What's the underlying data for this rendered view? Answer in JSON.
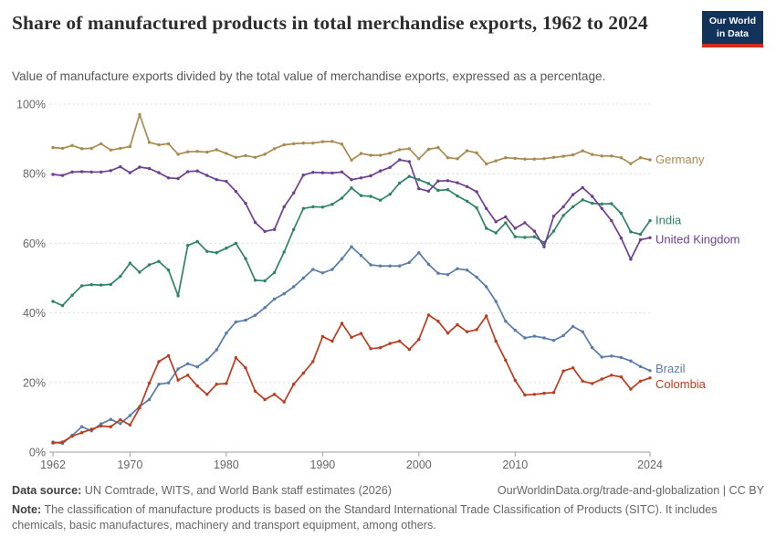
{
  "header": {
    "title": "Share of manufactured products in total merchandise exports, 1962 to 2024",
    "subtitle": "Value of manufacture exports divided by the total value of merchandise exports, expressed as a percentage."
  },
  "logo": {
    "line1": "Our World",
    "line2": "in Data",
    "bg": "#12335c",
    "accent": "#cf2e1f"
  },
  "footer": {
    "source_label": "Data source:",
    "source_text": " UN Comtrade, WITS, and World Bank staff estimates (2026)",
    "link": "OurWorldinData.org/trade-and-globalization | CC BY",
    "note_label": "Note:",
    "note_text": " The classification of manufacture products is based on the Standard International Trade Classification of Products (SITC). It includes chemicals, basic manufactures, machinery and transport equipment, among others."
  },
  "chart_data": {
    "type": "line",
    "title": "Share of manufactured products in total merchandise exports, 1962 to 2024",
    "xlabel": "",
    "ylabel": "",
    "ylim": [
      0,
      100
    ],
    "y_ticks": [
      0,
      20,
      40,
      60,
      80,
      100
    ],
    "x_ticks": [
      1962,
      1970,
      1980,
      1990,
      2000,
      2010,
      2024
    ],
    "x_range": [
      1962,
      2024
    ],
    "grid": "dashed-horizontal",
    "legend_position": "line-end-labels",
    "years": [
      1962,
      1963,
      1964,
      1965,
      1966,
      1967,
      1968,
      1969,
      1970,
      1971,
      1972,
      1973,
      1974,
      1975,
      1976,
      1977,
      1978,
      1979,
      1980,
      1981,
      1982,
      1983,
      1984,
      1985,
      1986,
      1987,
      1988,
      1989,
      1990,
      1991,
      1992,
      1993,
      1994,
      1995,
      1996,
      1997,
      1998,
      1999,
      2000,
      2001,
      2002,
      2003,
      2004,
      2005,
      2006,
      2007,
      2008,
      2009,
      2010,
      2011,
      2012,
      2013,
      2014,
      2015,
      2016,
      2017,
      2018,
      2019,
      2020,
      2021,
      2022,
      2023,
      2024
    ],
    "series": [
      {
        "name": "Germany",
        "color": "#A88A50",
        "label_dy": 0,
        "values": [
          87.5,
          87.3,
          88.1,
          87.2,
          87.3,
          88.6,
          86.8,
          87.3,
          87.8,
          97.0,
          89.0,
          88.3,
          88.6,
          85.6,
          86.3,
          86.4,
          86.2,
          86.9,
          85.8,
          84.7,
          85.2,
          84.7,
          85.6,
          87.2,
          88.3,
          88.6,
          88.8,
          88.8,
          89.2,
          89.3,
          88.5,
          83.9,
          85.8,
          85.3,
          85.3,
          85.9,
          86.9,
          87.2,
          84.3,
          87.0,
          87.5,
          84.6,
          84.3,
          86.6,
          86.0,
          82.8,
          83.7,
          84.6,
          84.4,
          84.2,
          84.2,
          84.3,
          84.7,
          85.0,
          85.4,
          86.6,
          85.5,
          85.1,
          85.1,
          84.6,
          82.9,
          84.6,
          84.0
        ]
      },
      {
        "name": "India",
        "color": "#2C8465",
        "label_dy": 0,
        "values": [
          43.3,
          42.1,
          45.1,
          47.8,
          48.1,
          48.0,
          48.2,
          50.5,
          54.3,
          51.7,
          53.8,
          54.8,
          52.3,
          44.9,
          59.4,
          60.5,
          57.7,
          57.3,
          58.6,
          60.0,
          55.6,
          49.4,
          49.2,
          51.6,
          57.5,
          64.0,
          70.0,
          70.5,
          70.4,
          71.2,
          73.0,
          75.9,
          73.7,
          73.5,
          72.4,
          74.1,
          77.3,
          79.2,
          78.3,
          77.2,
          75.2,
          75.4,
          73.6,
          72.1,
          70.2,
          64.3,
          63.0,
          65.9,
          61.9,
          61.7,
          61.9,
          60.2,
          63.5,
          68.0,
          70.5,
          72.5,
          71.5,
          71.3,
          71.4,
          68.6,
          63.3,
          62.6,
          66.5
        ]
      },
      {
        "name": "United Kingdom",
        "color": "#6D3E91",
        "label_dy": 2,
        "values": [
          79.8,
          79.5,
          80.5,
          80.6,
          80.5,
          80.5,
          80.9,
          82.0,
          80.3,
          81.9,
          81.5,
          80.3,
          78.8,
          78.6,
          80.6,
          80.8,
          79.5,
          78.3,
          77.8,
          74.9,
          71.5,
          66.0,
          63.4,
          64.0,
          70.5,
          74.5,
          79.6,
          80.4,
          80.3,
          80.2,
          80.5,
          78.3,
          78.8,
          79.4,
          80.8,
          81.8,
          84.0,
          83.5,
          75.7,
          75.0,
          77.9,
          78.0,
          77.4,
          76.3,
          74.8,
          70.0,
          66.2,
          67.6,
          64.3,
          65.9,
          63.5,
          59.0,
          67.8,
          70.5,
          74.0,
          76.0,
          73.5,
          70.0,
          66.5,
          61.5,
          55.4,
          61.0,
          61.6
        ]
      },
      {
        "name": "Brazil",
        "color": "#587CA8",
        "label_dy": -2,
        "values": [
          2.9,
          2.5,
          4.8,
          7.3,
          6.1,
          8.1,
          9.4,
          8.2,
          10.5,
          13.1,
          15.1,
          19.5,
          19.9,
          23.9,
          25.4,
          24.5,
          26.5,
          29.4,
          34.2,
          37.4,
          37.9,
          39.3,
          41.5,
          44.0,
          45.5,
          47.5,
          50.0,
          52.5,
          51.5,
          52.5,
          55.5,
          59.0,
          56.5,
          53.8,
          53.5,
          53.5,
          53.5,
          54.5,
          57.3,
          54.0,
          51.4,
          51.0,
          52.7,
          52.3,
          50.3,
          47.5,
          43.3,
          37.6,
          35.0,
          32.8,
          33.3,
          32.8,
          32.1,
          33.5,
          36.1,
          34.6,
          30.0,
          27.3,
          27.6,
          27.2,
          26.2,
          24.6,
          23.4
        ]
      },
      {
        "name": "Colombia",
        "color": "#BC3A1D",
        "label_dy": 7,
        "values": [
          2.6,
          2.9,
          4.6,
          5.6,
          6.6,
          7.5,
          7.3,
          9.3,
          7.8,
          12.7,
          19.8,
          26.0,
          27.7,
          20.7,
          22.1,
          19.0,
          16.6,
          19.5,
          19.7,
          27.1,
          24.2,
          17.5,
          15.1,
          16.6,
          14.4,
          19.5,
          22.7,
          26.0,
          33.2,
          31.9,
          37.0,
          33.0,
          34.1,
          29.7,
          30.0,
          31.2,
          31.9,
          29.5,
          32.4,
          39.4,
          37.6,
          34.2,
          36.6,
          34.6,
          35.2,
          39.1,
          31.9,
          26.4,
          20.6,
          16.4,
          16.6,
          16.9,
          17.1,
          23.3,
          24.2,
          20.4,
          19.7,
          21.0,
          22.1,
          21.6,
          18.1,
          20.4,
          21.3
        ]
      }
    ]
  }
}
